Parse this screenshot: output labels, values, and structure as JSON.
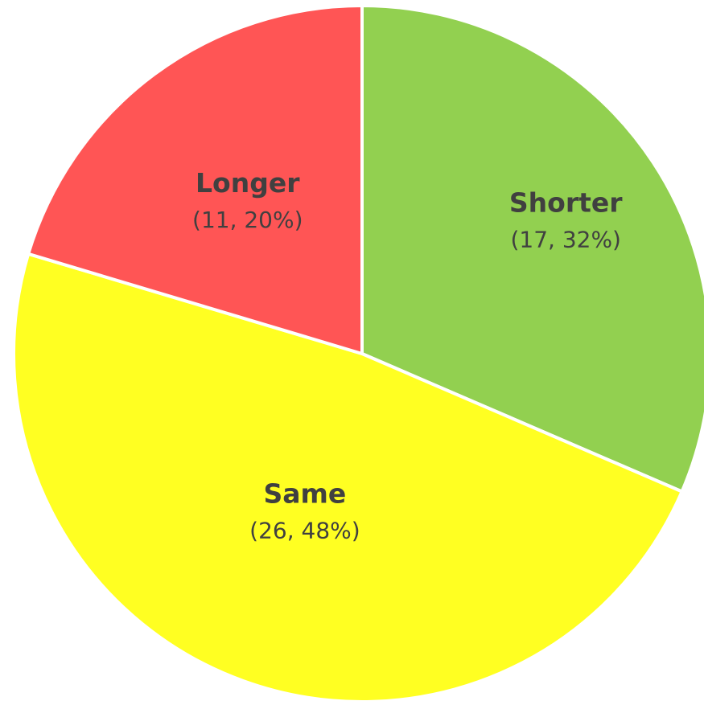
{
  "chart_data": {
    "type": "pie",
    "title": "",
    "start_angle_deg": 0,
    "direction": "clockwise",
    "slices": [
      {
        "label": "Shorter",
        "value": 17,
        "percent": "32%",
        "value_text": "(17, 32%)",
        "color": "#92D050"
      },
      {
        "label": "Same",
        "value": 26,
        "percent": "48%",
        "value_text": "(26, 48%)",
        "color": "#FFFF22"
      },
      {
        "label": "Longer",
        "value": 11,
        "percent": "20%",
        "value_text": "(11, 20%)",
        "color": "#FF5555"
      }
    ]
  }
}
